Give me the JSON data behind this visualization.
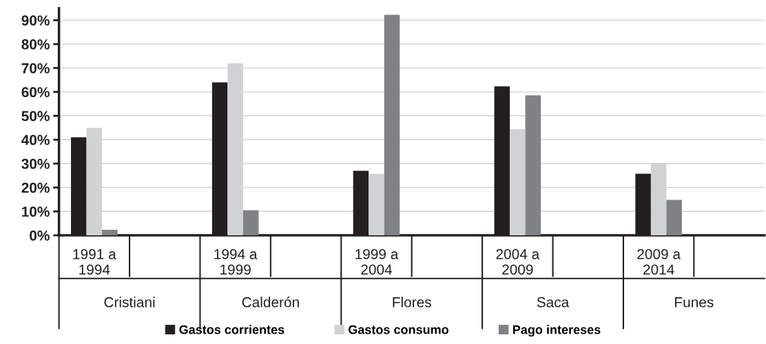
{
  "chart_data": {
    "type": "bar",
    "categories": [
      "1991 a\n1994",
      null,
      "1994 a\n1999",
      null,
      "1999 a\n2004",
      null,
      "2004 a\n2009",
      null,
      "2009 a\n2014",
      null
    ],
    "series": [
      {
        "name": "Gastos corrientes",
        "color": "#231f20",
        "values": [
          41,
          null,
          64,
          null,
          27,
          null,
          62.3,
          null,
          25.8,
          null
        ]
      },
      {
        "name": "Gastos consumo",
        "color": "#d1d2d4",
        "values": [
          45,
          null,
          72,
          null,
          25.7,
          null,
          44.4,
          null,
          30,
          null
        ]
      },
      {
        "name": "Pago intereses",
        "color": "#808285",
        "values": [
          2.3,
          null,
          10.5,
          null,
          92.3,
          null,
          58.6,
          null,
          14.8,
          null
        ]
      }
    ],
    "annotations": [
      "Cristiani",
      "Calderón",
      "Flores",
      "Saca",
      "Funes"
    ],
    "ylim": [
      0,
      95
    ],
    "yticks": [
      {
        "value": 0,
        "label": "0%"
      },
      {
        "value": 10,
        "label": "10%"
      },
      {
        "value": 20,
        "label": "20%"
      },
      {
        "value": 30,
        "label": "30%"
      },
      {
        "value": 40,
        "label": "40%"
      },
      {
        "value": 50,
        "label": "50%"
      },
      {
        "value": 60,
        "label": "60%"
      },
      {
        "value": 70,
        "label": "70%"
      },
      {
        "value": 80,
        "label": "80%"
      },
      {
        "value": 90,
        "label": "90%"
      }
    ],
    "grid": "y",
    "legend": "bottom"
  }
}
